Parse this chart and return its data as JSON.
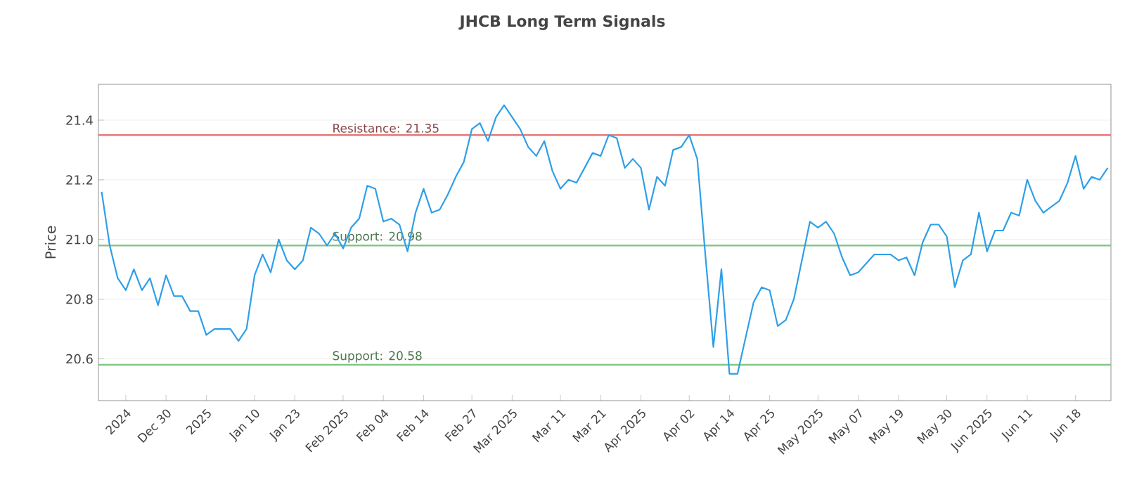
{
  "chart_data": {
    "type": "line",
    "title": "JHCB Long Term Signals",
    "ylabel": "Price",
    "categories": [
      null,
      null,
      null,
      "2024",
      null,
      null,
      null,
      null,
      "Dec 30",
      null,
      null,
      null,
      null,
      "2025",
      null,
      null,
      null,
      null,
      null,
      "Jan 10",
      null,
      null,
      null,
      null,
      "Jan 23",
      null,
      null,
      null,
      null,
      null,
      "Feb 2025",
      null,
      null,
      null,
      null,
      "Feb 04",
      null,
      null,
      null,
      null,
      "Feb 14",
      null,
      null,
      null,
      null,
      null,
      "Feb 27",
      null,
      null,
      null,
      null,
      "Mar 2025",
      null,
      null,
      null,
      null,
      null,
      "Mar 11",
      null,
      null,
      null,
      null,
      "Mar 21",
      null,
      null,
      null,
      null,
      "Apr 2025",
      null,
      null,
      null,
      null,
      null,
      "Apr 02",
      null,
      null,
      null,
      null,
      "Apr 14",
      null,
      null,
      null,
      null,
      "Apr 25",
      null,
      null,
      null,
      null,
      null,
      "May 2025",
      null,
      null,
      null,
      null,
      "May 07",
      null,
      null,
      null,
      null,
      "May 19",
      null,
      null,
      null,
      null,
      null,
      "May 30",
      null,
      null,
      null,
      null,
      "Jun 2025",
      null,
      null,
      null,
      null,
      "Jun 11",
      null,
      null,
      null,
      null,
      null,
      "Jun 18",
      null,
      null,
      null,
      null
    ],
    "series": [
      {
        "color": "#2e9fe8",
        "values": [
          21.16,
          20.98,
          20.87,
          20.83,
          20.9,
          20.83,
          20.87,
          20.78,
          20.88,
          20.81,
          20.81,
          20.76,
          20.76,
          20.68,
          20.7,
          20.7,
          20.7,
          20.66,
          20.7,
          20.88,
          20.95,
          20.89,
          21.0,
          20.93,
          20.9,
          20.93,
          21.04,
          21.02,
          20.98,
          21.02,
          20.97,
          21.04,
          21.07,
          21.18,
          21.17,
          21.06,
          21.07,
          21.05,
          20.96,
          21.09,
          21.17,
          21.09,
          21.1,
          21.15,
          21.21,
          21.26,
          21.37,
          21.39,
          21.33,
          21.41,
          21.45,
          21.41,
          21.37,
          21.31,
          21.28,
          21.33,
          21.23,
          21.17,
          21.2,
          21.19,
          21.24,
          21.29,
          21.28,
          21.35,
          21.34,
          21.24,
          21.27,
          21.24,
          21.1,
          21.21,
          21.18,
          21.3,
          21.31,
          21.35,
          21.27,
          20.95,
          20.64,
          20.9,
          20.55,
          20.55,
          20.67,
          20.79,
          20.84,
          20.83,
          20.71,
          20.73,
          20.8,
          20.93,
          21.06,
          21.04,
          21.06,
          21.02,
          20.94,
          20.88,
          20.89,
          20.92,
          20.95,
          20.95,
          20.95,
          20.93,
          20.94,
          20.88,
          20.99,
          21.05,
          21.05,
          21.01,
          20.84,
          20.93,
          20.95,
          21.09,
          20.96,
          21.03,
          21.03,
          21.09,
          21.08,
          21.2,
          21.13,
          21.09,
          21.11,
          21.13,
          21.19,
          21.28,
          21.17,
          21.21,
          21.2,
          21.24
        ]
      }
    ],
    "ylim": [
      20.46,
      21.52
    ],
    "yticks": [
      20.6,
      20.8,
      {
        "value": 21.0,
        "label": "21.0"
      },
      21.2,
      21.4
    ],
    "grid": "y",
    "legend": false,
    "marker": "none",
    "line_style": "solid",
    "ref_lines": [
      {
        "axis": "y",
        "value": 21.35,
        "label": "Resistance: 21.35",
        "color": "#e57373"
      },
      {
        "axis": "y",
        "value": 20.98,
        "label": "Support: 20.98",
        "color": "#81c784"
      },
      {
        "axis": "y",
        "value": 20.58,
        "label": "Support: 20.58",
        "color": "#81c784"
      }
    ]
  }
}
